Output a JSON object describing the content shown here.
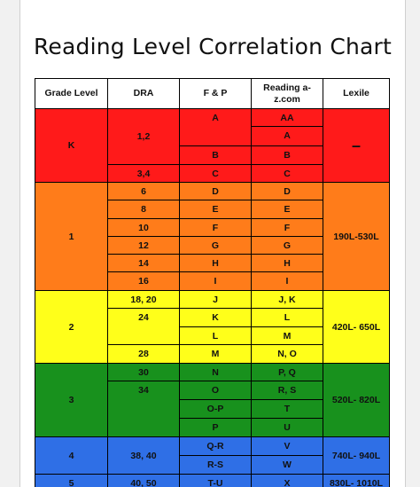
{
  "title": "Reading Level Correlation Chart",
  "headers": [
    "Grade Level",
    "DRA",
    "F & P",
    "Reading a-z.com",
    "Lexile"
  ],
  "grades": [
    {
      "grade": "K",
      "lexile": "–",
      "color": "#ff1a1a",
      "rows": [
        {
          "dra": "1,2",
          "fp": "A",
          "raz": "AA"
        },
        {
          "dra": null,
          "fp": null,
          "raz": "A"
        },
        {
          "dra": null,
          "fp": "B",
          "raz": "B"
        },
        {
          "dra": "3,4",
          "fp": "C",
          "raz": "C"
        }
      ]
    },
    {
      "grade": "1",
      "lexile": "190L-530L",
      "color": "#ff7c1a",
      "rows": [
        {
          "dra": "6",
          "fp": "D",
          "raz": "D"
        },
        {
          "dra": "8",
          "fp": "E",
          "raz": "E"
        },
        {
          "dra": "10",
          "fp": "F",
          "raz": "F"
        },
        {
          "dra": "12",
          "fp": "G",
          "raz": "G"
        },
        {
          "dra": "14",
          "fp": "H",
          "raz": "H"
        },
        {
          "dra": "16",
          "fp": "I",
          "raz": "I"
        }
      ]
    },
    {
      "grade": "2",
      "lexile": "420L- 650L",
      "color": "#ffff1a",
      "rows": [
        {
          "dra": "18, 20",
          "fp": "J",
          "raz": "J, K"
        },
        {
          "dra": "24",
          "fp": "K",
          "raz": "L"
        },
        {
          "dra": null,
          "fp": "L",
          "raz": "M"
        },
        {
          "dra": "28",
          "fp": "M",
          "raz": "N, O"
        }
      ]
    },
    {
      "grade": "3",
      "lexile": "520L- 820L",
      "color": "#18911d",
      "rows": [
        {
          "dra": "30",
          "fp": "N",
          "raz": "P, Q"
        },
        {
          "dra": "34",
          "fp": "O",
          "raz": "R, S"
        },
        {
          "dra": null,
          "fp": "O-P",
          "raz": "T"
        },
        {
          "dra": null,
          "fp": "P",
          "raz": "U"
        }
      ]
    },
    {
      "grade": "4",
      "lexile": "740L- 940L",
      "color": "#2f6fe6",
      "rows": [
        {
          "dra": "38, 40",
          "fp": "Q-R",
          "raz": "V"
        },
        {
          "dra": null,
          "fp": "R-S",
          "raz": "W"
        }
      ]
    },
    {
      "grade": "5",
      "lexile": "830L- 1010L",
      "color": "#2f6fe6",
      "rows": [
        {
          "dra": "40, 50",
          "fp": "T-U",
          "raz": "X"
        }
      ]
    }
  ]
}
